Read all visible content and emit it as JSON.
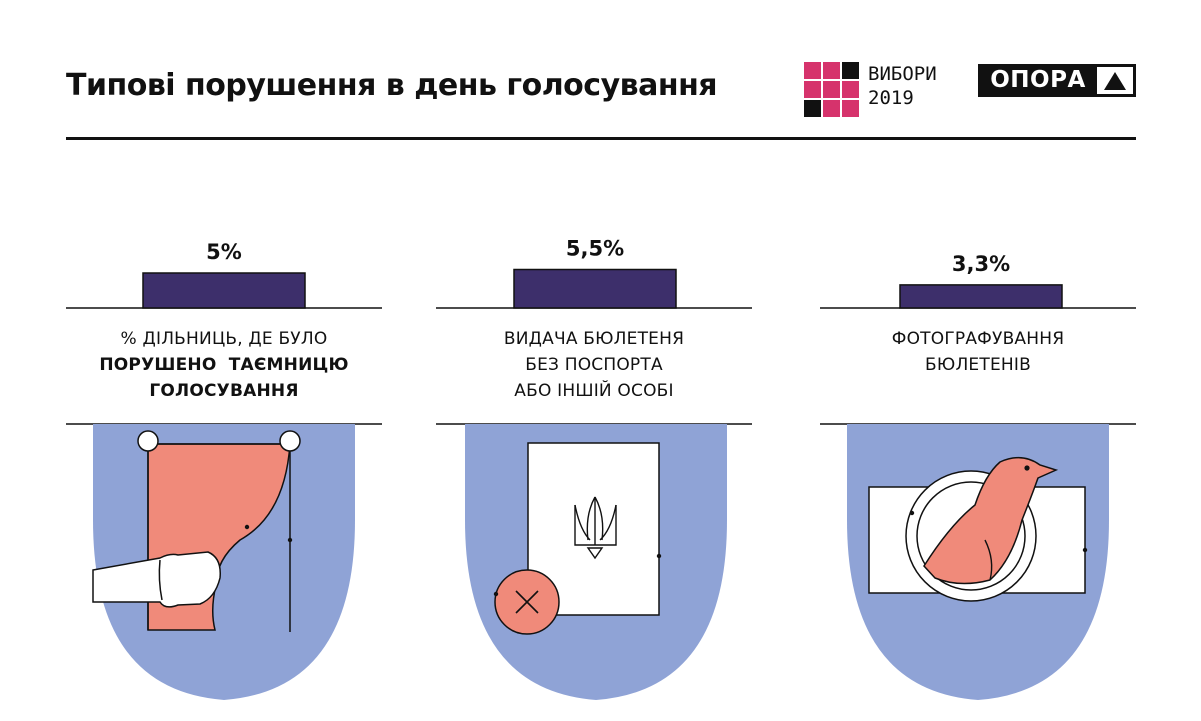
{
  "title": "Типові порушення в день голосування",
  "logos": {
    "vybory_line1": "ВИБОРИ",
    "vybory_line2": "2019",
    "opora": "ОПОРА"
  },
  "colors": {
    "bar": "#3d2f6b",
    "blob": "#8fa3d6",
    "coral": "#f08a7a",
    "brand_pink": "#d6336c"
  },
  "chart_data": {
    "type": "bar",
    "categories": [
      "% ДІЛЬНИЦЬ, ДЕ БУЛО ПОРУШЕНО  ТАЄМНИЦЮ ГОЛОСУВАННЯ",
      "ВИДАЧА БЮЛЕТЕНЯ БЕЗ ПОСПОРТА АБО ІНШІЙ ОСОБІ",
      "ФОТОГРАФУВАННЯ БЮЛЕТЕНІВ"
    ],
    "values": [
      5,
      5.5,
      3.3
    ],
    "value_labels": [
      "5%",
      "5,5%",
      "3,3%"
    ],
    "ylim": [
      0,
      5.5
    ],
    "grid": false
  },
  "labels": {
    "c1_line1": "% ДІЛЬНИЦЬ, ДЕ БУЛО",
    "c1_line2": "ПОРУШЕНО  ТАЄМНИЦЮ",
    "c1_line3": "ГОЛОСУВАННЯ",
    "c2_line1": "ВИДАЧА БЮЛЕТЕНЯ",
    "c2_line2": "БЕЗ ПОСПОРТА",
    "c2_line3": "АБО ІНШІЙ ОСОБІ",
    "c3_line1": "ФОТОГРАФУВАННЯ",
    "c3_line2": "БЮЛЕТЕНІВ"
  },
  "icons": [
    "curtain-icon",
    "ballot-trident-icon",
    "camera-bird-icon"
  ]
}
